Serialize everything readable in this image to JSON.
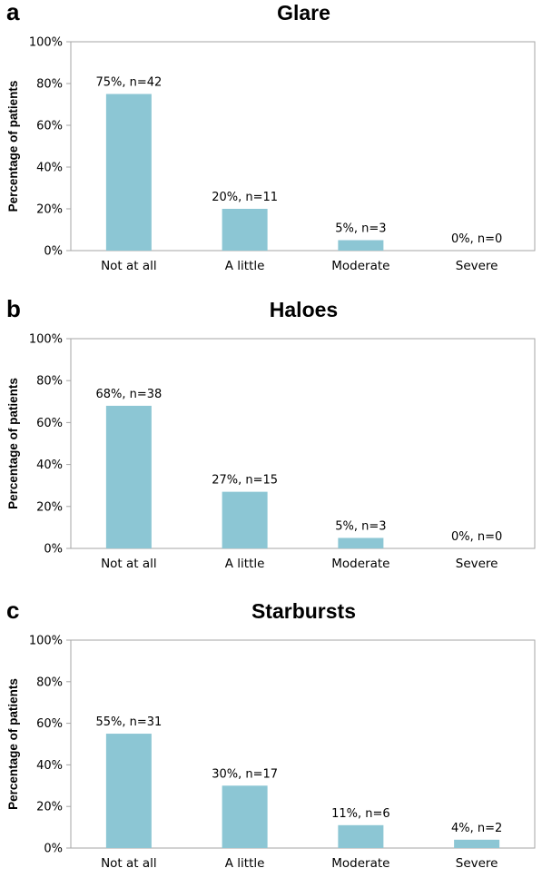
{
  "chart_data": [
    {
      "type": "bar",
      "panel_label": "a",
      "title": "Glare",
      "ylabel": "Percentage of patients",
      "xlabel": "",
      "categories": [
        "Not at all",
        "A little",
        "Moderate",
        "Severe"
      ],
      "values": [
        75,
        20,
        5,
        0
      ],
      "data_labels": [
        "75%, n=42",
        "20%, n=11",
        "5%, n=3",
        "0%, n=0"
      ],
      "ylim": [
        0,
        100
      ],
      "yticks": [
        "0%",
        "20%",
        "40%",
        "60%",
        "80%",
        "100%"
      ],
      "grid": false,
      "bar_color": "#8cc6d4"
    },
    {
      "type": "bar",
      "panel_label": "b",
      "title": "Haloes",
      "ylabel": "Percentage of patients",
      "xlabel": "",
      "categories": [
        "Not at all",
        "A little",
        "Moderate",
        "Severe"
      ],
      "values": [
        68,
        27,
        5,
        0
      ],
      "data_labels": [
        "68%, n=38",
        "27%, n=15",
        "5%, n=3",
        "0%, n=0"
      ],
      "ylim": [
        0,
        100
      ],
      "yticks": [
        "0%",
        "20%",
        "40%",
        "60%",
        "80%",
        "100%"
      ],
      "grid": false,
      "bar_color": "#8cc6d4"
    },
    {
      "type": "bar",
      "panel_label": "c",
      "title": "Starbursts",
      "ylabel": "Percentage of patients",
      "xlabel": "",
      "categories": [
        "Not at all",
        "A little",
        "Moderate",
        "Severe"
      ],
      "values": [
        55,
        30,
        11,
        4
      ],
      "data_labels": [
        "55%, n=31",
        "30%, n=17",
        "11%, n=6",
        "4%, n=2"
      ],
      "ylim": [
        0,
        100
      ],
      "yticks": [
        "0%",
        "20%",
        "40%",
        "60%",
        "80%",
        "100%"
      ],
      "grid": false,
      "bar_color": "#8cc6d4"
    }
  ]
}
